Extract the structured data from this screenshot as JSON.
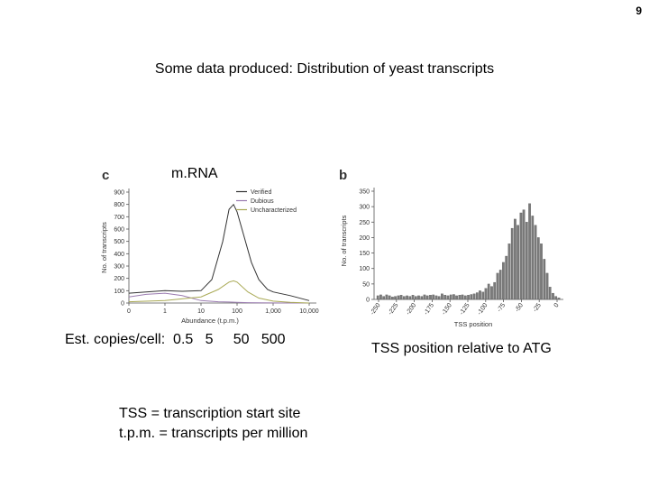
{
  "slide": {
    "number": "9",
    "title": "Some data produced: Distribution of yeast transcripts",
    "mrna_label": "m.RNA",
    "copies_line": "Est. copies/cell:  0.5   5     50   500",
    "tss_caption": "TSS position relative to ATG",
    "definitions": [
      "TSS = transcription start site",
      "t.p.m. = transcripts per million"
    ]
  },
  "chart_data": [
    {
      "panel": "c",
      "type": "line",
      "xscale": "log",
      "xlabel": "Abundance (t.p.m.)",
      "ylabel": "No. of transcripts",
      "xticks": [
        "0",
        "1",
        "10",
        "100",
        "1,000",
        "10,000"
      ],
      "yticks": [
        "0",
        "100",
        "200",
        "300",
        "400",
        "500",
        "600",
        "700",
        "800",
        "900"
      ],
      "ylim": [
        0,
        900
      ],
      "grid": false,
      "legend_position": "top-right",
      "series": [
        {
          "name": "Verified",
          "color": "#333333",
          "x": [
            0.1,
            0.3,
            1,
            3,
            10,
            20,
            40,
            60,
            80,
            100,
            150,
            250,
            400,
            700,
            1000,
            3000,
            10000
          ],
          "y": [
            80,
            90,
            100,
            95,
            100,
            190,
            500,
            760,
            800,
            740,
            560,
            330,
            190,
            110,
            90,
            60,
            20
          ]
        },
        {
          "name": "Dubious",
          "color": "#9a7bb0",
          "x": [
            0.1,
            0.3,
            1,
            3,
            10,
            30,
            60,
            100,
            200,
            400,
            1000,
            3000,
            10000
          ],
          "y": [
            50,
            70,
            80,
            60,
            20,
            10,
            8,
            5,
            3,
            2,
            1,
            0,
            0
          ]
        },
        {
          "name": "Uncharacterized",
          "color": "#a9a955",
          "x": [
            0.1,
            1,
            10,
            30,
            60,
            80,
            100,
            200,
            400,
            1000,
            3000,
            10000
          ],
          "y": [
            10,
            20,
            50,
            110,
            170,
            180,
            170,
            90,
            40,
            15,
            5,
            0
          ]
        }
      ]
    },
    {
      "panel": "b",
      "type": "bar",
      "xlabel": "TSS position",
      "ylabel": "No. of transcripts",
      "xticks": [
        "-250",
        "-225",
        "-200",
        "-175",
        "-150",
        "-125",
        "-100",
        "-75",
        "-50",
        "-25",
        "0"
      ],
      "yticks": [
        "0",
        "50",
        "100",
        "150",
        "200",
        "250",
        "300",
        "350"
      ],
      "ylim": [
        0,
        350
      ],
      "bar_color": "#7a7a7a",
      "values": [
        12,
        15,
        10,
        15,
        12,
        8,
        10,
        12,
        14,
        10,
        12,
        10,
        14,
        10,
        12,
        10,
        15,
        12,
        14,
        15,
        12,
        10,
        18,
        14,
        12,
        15,
        16,
        12,
        14,
        15,
        12,
        14,
        16,
        18,
        22,
        28,
        24,
        36,
        50,
        42,
        55,
        85,
        95,
        120,
        140,
        180,
        230,
        260,
        240,
        280,
        290,
        250,
        310,
        270,
        240,
        200,
        180,
        130,
        85,
        40,
        20,
        10,
        5
      ]
    }
  ]
}
